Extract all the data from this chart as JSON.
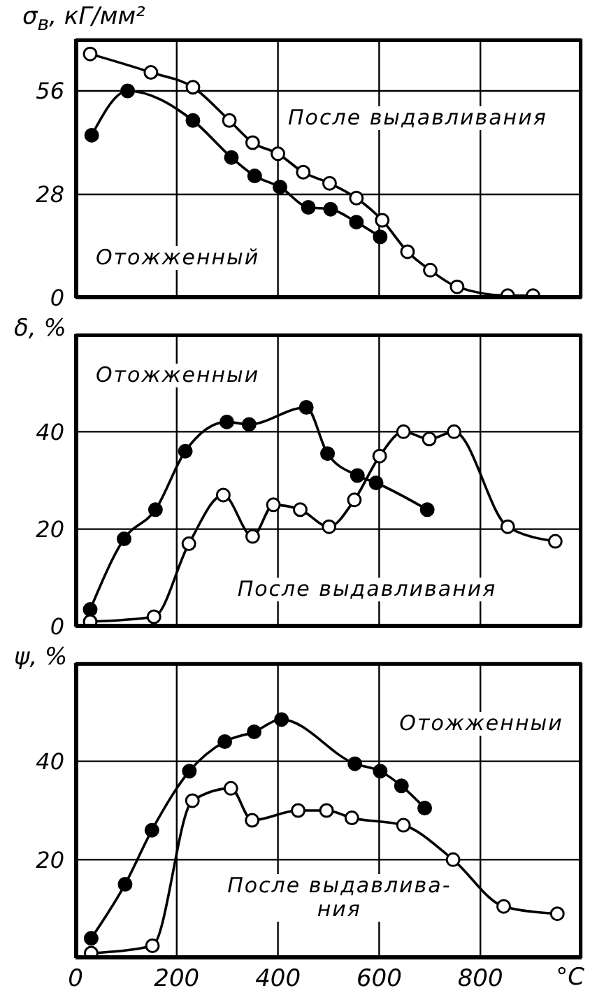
{
  "chart_data": [
    {
      "type": "line",
      "ylabel": "σ$_{в}$, кГ/мм²",
      "xlim": [
        0,
        1000
      ],
      "xticks": [
        0,
        200,
        400,
        600,
        800
      ],
      "ylim": [
        0,
        70
      ],
      "yticks": [
        0,
        28,
        56
      ],
      "grid": true,
      "tick_labels": "y",
      "marker": "circle",
      "line_style": "solid",
      "series": [
        {
          "name": "Отожженный",
          "color": "#000000",
          "x": [
            32,
            103,
            232,
            308,
            354,
            404,
            460,
            504,
            555,
            602
          ],
          "values": [
            44,
            56,
            48,
            38,
            33,
            30,
            24.5,
            24,
            20.5,
            16.5
          ]
        },
        {
          "name": "После выдавливания",
          "color": "#000000",
          "x": [
            29,
            149,
            232,
            304,
            350,
            400,
            450,
            502,
            555,
            606,
            656,
            701,
            754,
            854,
            904
          ],
          "values": [
            66,
            61,
            57,
            48,
            42,
            39,
            34,
            31,
            27,
            21,
            12.5,
            7.5,
            3,
            0.6,
            0.6
          ]
        }
      ]
    },
    {
      "type": "line",
      "ylabel": "δ, %",
      "xlim": [
        0,
        1000
      ],
      "xticks": [
        0,
        200,
        400,
        600,
        800
      ],
      "ylim": [
        0,
        60
      ],
      "yticks": [
        0,
        20,
        40
      ],
      "grid": true,
      "tick_labels": "y",
      "marker": "circle",
      "line_style": "solid",
      "series": [
        {
          "name": "Отожженныи",
          "color": "#000000",
          "x": [
            29,
            96,
            158,
            217,
            299,
            343,
            456,
            498,
            557,
            594,
            695
          ],
          "values": [
            3.5,
            18,
            24,
            36,
            42,
            41.5,
            45,
            35.5,
            31,
            29.5,
            24
          ]
        },
        {
          "name": "После выдавливания",
          "color": "#000000",
          "x": [
            29,
            155,
            224,
            292,
            350,
            391,
            444,
            501,
            551,
            601,
            648,
            699,
            748,
            854,
            948
          ],
          "values": [
            1,
            2,
            17,
            27,
            18.5,
            25,
            24,
            20.5,
            26,
            35,
            40,
            38.5,
            40,
            20.5,
            17.5
          ]
        }
      ]
    },
    {
      "type": "line",
      "ylabel": "ψ, %",
      "xlabel": "°C",
      "xlim": [
        0,
        1000
      ],
      "xticks": [
        0,
        200,
        400,
        600,
        800
      ],
      "ylim": [
        0,
        60
      ],
      "yticks": [
        {
          "value": 0,
          "label": null
        },
        20,
        40
      ],
      "grid": true,
      "marker": "circle",
      "line_style": "solid",
      "series": [
        {
          "name": "Отожженныи",
          "color": "#000000",
          "x": [
            31,
            98,
            151,
            225,
            295,
            353,
            407,
            552,
            602,
            644,
            690
          ],
          "values": [
            4,
            15,
            26,
            38,
            44,
            46,
            48.5,
            39.5,
            38,
            35,
            30.5
          ]
        },
        {
          "name": "После выдавлива-\nния",
          "color": "#000000",
          "x": [
            31,
            152,
            231,
            307,
            349,
            440,
            496,
            546,
            648,
            746,
            846,
            952
          ],
          "values": [
            1,
            2.5,
            32,
            34.5,
            28,
            30,
            30,
            28.5,
            27,
            20,
            10.5,
            9
          ]
        }
      ]
    }
  ]
}
